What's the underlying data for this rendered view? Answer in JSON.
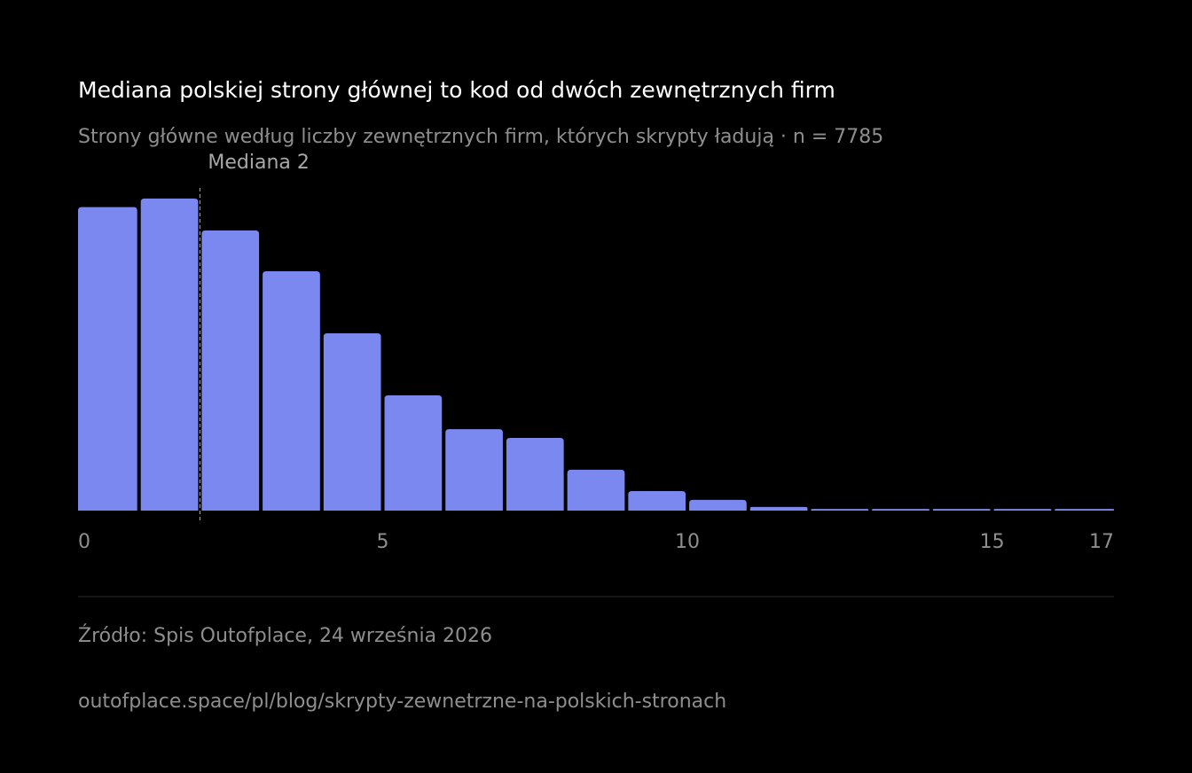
{
  "chart_data": {
    "type": "histogram",
    "title": "Mediana polskiej strony głównej to kod od dwóch zewnętrznych firm",
    "subtitle": "Strony główne według liczby zewnętrznych firm, których skrypty ładują · n = 7785",
    "bins": [
      0,
      1,
      2,
      3,
      4,
      5,
      6,
      7,
      8,
      9,
      10,
      11,
      12,
      13,
      14,
      15,
      16,
      17
    ],
    "values": [
      1419,
      1459,
      1310,
      1119,
      829,
      539,
      381,
      340,
      191,
      91,
      50,
      17,
      8,
      8,
      8,
      8,
      8
    ],
    "color": "#7b88f0",
    "xlim": [
      0,
      17
    ],
    "xticks": [
      0,
      5,
      10,
      15,
      17
    ],
    "median": {
      "value": 2,
      "label": "Mediana 2"
    }
  },
  "source": "Źródło: Spis Outofplace, 24 września 2026",
  "url": "outofplace.space/pl/blog/skrypty-zewnetrzne-na-polskich-stronach"
}
